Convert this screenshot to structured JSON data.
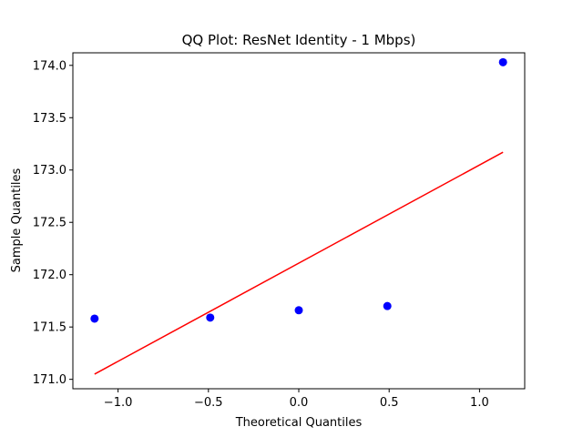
{
  "chart_data": {
    "type": "scatter",
    "title": "QQ Plot: ResNet Identity - 1 Mbps)",
    "xlabel": "Theoretical Quantiles",
    "ylabel": "Sample Quantiles",
    "xlim": [
      -1.25,
      1.25
    ],
    "ylim": [
      170.91,
      174.12
    ],
    "xticks": [
      -1.0,
      -0.5,
      0.0,
      0.5,
      1.0
    ],
    "xtick_labels": [
      "−1.0",
      "−0.5",
      "0.0",
      "0.5",
      "1.0"
    ],
    "yticks": [
      171.0,
      171.5,
      172.0,
      172.5,
      173.0,
      173.5,
      174.0
    ],
    "ytick_labels": [
      "171.0",
      "171.5",
      "172.0",
      "172.5",
      "173.0",
      "173.5",
      "174.0"
    ],
    "grid": false,
    "series": [
      {
        "kind": "points",
        "color": "#0000ff",
        "x": [
          -1.13,
          -0.49,
          0.0,
          0.49,
          1.13
        ],
        "y": [
          171.58,
          171.59,
          171.66,
          171.7,
          174.03
        ]
      },
      {
        "kind": "line",
        "color": "#ff0000",
        "x": [
          -1.13,
          1.13
        ],
        "y": [
          171.05,
          173.17
        ]
      }
    ]
  }
}
